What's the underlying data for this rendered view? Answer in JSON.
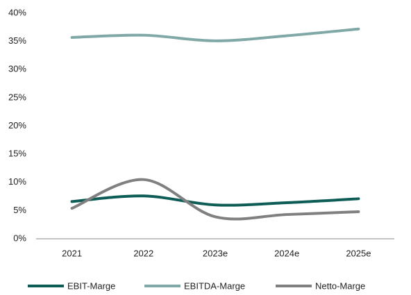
{
  "chart_data": {
    "type": "line",
    "categories": [
      "2021",
      "2022",
      "2023e",
      "2024e",
      "2025e"
    ],
    "series": [
      {
        "name": "EBIT-Marge",
        "color": "#0d5c55",
        "values": [
          6.6,
          7.6,
          6.0,
          6.4,
          7.1
        ]
      },
      {
        "name": "EBITDA-Marge",
        "color": "#7fa8a7",
        "values": [
          35.7,
          36.1,
          35.1,
          36.0,
          37.2
        ]
      },
      {
        "name": "Netto-Marge",
        "color": "#808080",
        "values": [
          5.4,
          10.5,
          3.9,
          4.3,
          4.8
        ]
      }
    ],
    "ylim": [
      0,
      40
    ],
    "yticks": [
      {
        "value": 0,
        "label": "0%"
      },
      {
        "value": 5,
        "label": "5%"
      },
      {
        "value": 10,
        "label": "10%"
      },
      {
        "value": 15,
        "label": "15%"
      },
      {
        "value": 20,
        "label": "20%"
      },
      {
        "value": 25,
        "label": "25%"
      },
      {
        "value": 30,
        "label": "30%"
      },
      {
        "value": 35,
        "label": "35%"
      },
      {
        "value": 40,
        "label": "40%"
      }
    ],
    "grid": false,
    "legend": "bottom"
  }
}
